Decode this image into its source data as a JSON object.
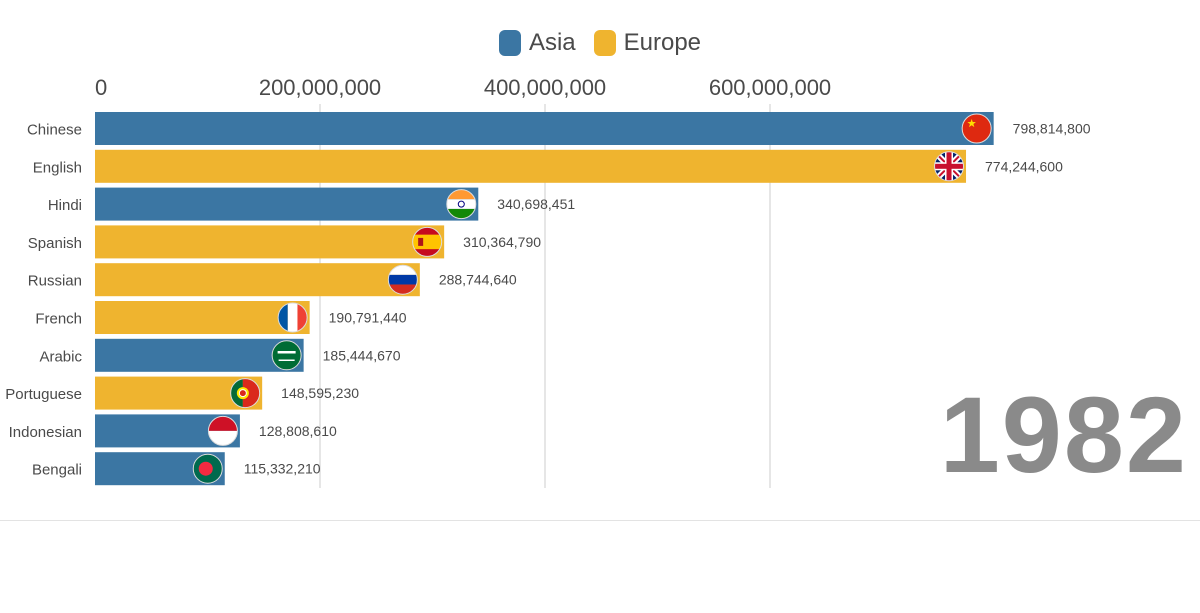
{
  "legend": [
    {
      "label": "Asia",
      "color": "#3b76a3"
    },
    {
      "label": "Europe",
      "color": "#efb42f"
    }
  ],
  "colors": {
    "Asia": "#3b76a3",
    "Europe": "#efb42f",
    "grid": "#dedede",
    "text": "#4a4a4a",
    "year": "#8a8a8a"
  },
  "year": "1982",
  "chart_data": {
    "type": "bar",
    "orientation": "horizontal",
    "title": "",
    "xlabel": "",
    "ylabel": "",
    "xlim": [
      0,
      800000000
    ],
    "x_ticks": [
      0,
      200000000,
      400000000,
      600000000
    ],
    "x_tick_labels": [
      "0",
      "200,000,000",
      "400,000,000",
      "600,000,000"
    ],
    "grid": true,
    "legend_position": "top-center",
    "categories": [
      "Chinese",
      "English",
      "Hindi",
      "Spanish",
      "Russian",
      "French",
      "Arabic",
      "Portuguese",
      "Indonesian",
      "Bengali"
    ],
    "values": [
      798814800,
      774244600,
      340698451,
      310364790,
      288744640,
      190791440,
      185444670,
      148595230,
      128808610,
      115332210
    ],
    "value_labels": [
      "798,814,800",
      "774,244,600",
      "340,698,451",
      "310,364,790",
      "288,744,640",
      "190,791,440",
      "185,444,670",
      "148,595,230",
      "128,808,610",
      "115,332,210"
    ],
    "groups": [
      "Asia",
      "Europe",
      "Asia",
      "Europe",
      "Europe",
      "Europe",
      "Asia",
      "Europe",
      "Asia",
      "Asia"
    ],
    "flags": [
      "china-flag-icon",
      "uk-flag-icon",
      "india-flag-icon",
      "spain-flag-icon",
      "russia-flag-icon",
      "france-flag-icon",
      "saudi-arabia-flag-icon",
      "portugal-flag-icon",
      "indonesia-flag-icon",
      "bangladesh-flag-icon"
    ]
  }
}
